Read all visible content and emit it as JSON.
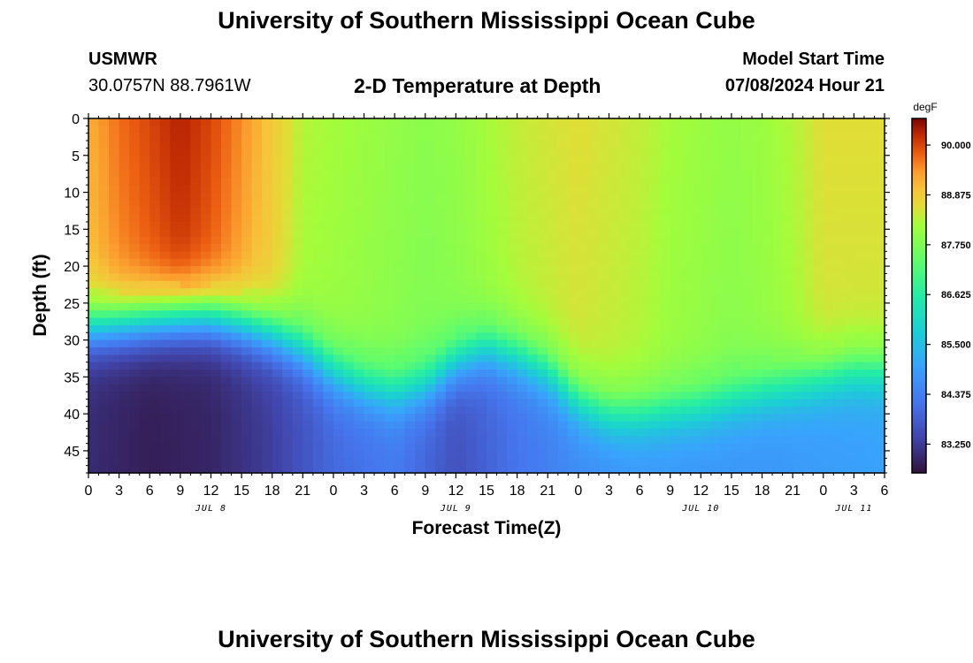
{
  "page": {
    "title_top": "University of Southern Mississippi Ocean Cube",
    "title_bottom": "University of Southern Mississippi Ocean Cube",
    "station": "USMWR",
    "coordinates": "30.0757N  88.7961W",
    "subtitle": "2-D Temperature at Depth",
    "start_label": "Model Start Time",
    "start_value": "07/08/2024 Hour 21"
  },
  "chart_data": {
    "type": "heatmap",
    "title": "2-D Temperature at Depth",
    "xlabel": "Forecast Time(Z)",
    "ylabel": "Depth (ft)",
    "x_tick_labels": [
      "0",
      "3",
      "6",
      "9",
      "12",
      "15",
      "18",
      "21",
      "0",
      "3",
      "6",
      "9",
      "12",
      "15",
      "18",
      "21",
      "0",
      "3",
      "6",
      "9",
      "12",
      "15",
      "18",
      "21",
      "0",
      "3",
      "6"
    ],
    "x_range_hours": [
      0,
      78
    ],
    "date_labels": [
      {
        "label": "JUL 8",
        "hour": 12
      },
      {
        "label": "JUL 9",
        "hour": 36
      },
      {
        "label": "JUL 10",
        "hour": 60
      },
      {
        "label": "JUL 11",
        "hour": 75
      }
    ],
    "y_ticks": [
      0,
      5,
      10,
      15,
      20,
      25,
      30,
      35,
      40,
      45
    ],
    "y_range_ft": [
      0,
      48
    ],
    "colorbar": {
      "unit": "degF",
      "min": 82.6,
      "max": 90.6,
      "tick_labels": [
        "83.250",
        "84.375",
        "85.500",
        "86.625",
        "87.750",
        "88.875",
        "90.000"
      ],
      "tick_values": [
        83.25,
        84.375,
        85.5,
        86.625,
        87.75,
        88.875,
        90.0
      ]
    },
    "surface_temp_by_hour": [
      [
        0,
        89.2
      ],
      [
        3,
        89.7
      ],
      [
        6,
        90.0
      ],
      [
        9,
        90.3
      ],
      [
        12,
        90.0
      ],
      [
        15,
        89.5
      ],
      [
        18,
        88.9
      ],
      [
        21,
        88.3
      ],
      [
        24,
        88.2
      ],
      [
        27,
        88.1
      ],
      [
        30,
        88.0
      ],
      [
        33,
        87.9
      ],
      [
        36,
        88.0
      ],
      [
        39,
        88.2
      ],
      [
        42,
        88.4
      ],
      [
        45,
        88.5
      ],
      [
        48,
        88.6
      ],
      [
        51,
        88.5
      ],
      [
        54,
        88.4
      ],
      [
        57,
        88.2
      ],
      [
        60,
        88.1
      ],
      [
        63,
        88.0
      ],
      [
        66,
        88.1
      ],
      [
        69,
        88.3
      ],
      [
        72,
        88.6
      ],
      [
        75,
        88.6
      ],
      [
        78,
        88.6
      ]
    ],
    "thermocline_depth_ft_by_hour": [
      [
        0,
        28
      ],
      [
        3,
        27.5
      ],
      [
        6,
        27
      ],
      [
        9,
        26.5
      ],
      [
        12,
        26.5
      ],
      [
        15,
        27.5
      ],
      [
        18,
        29
      ],
      [
        21,
        31
      ],
      [
        24,
        34
      ],
      [
        27,
        36
      ],
      [
        30,
        37
      ],
      [
        33,
        36
      ],
      [
        36,
        33
      ],
      [
        39,
        31
      ],
      [
        42,
        32
      ],
      [
        45,
        34
      ],
      [
        48,
        38
      ],
      [
        51,
        40
      ],
      [
        54,
        40
      ],
      [
        57,
        39.5
      ],
      [
        60,
        39
      ],
      [
        63,
        38
      ],
      [
        66,
        37
      ],
      [
        69,
        36
      ],
      [
        72,
        35
      ],
      [
        75,
        34
      ],
      [
        78,
        34
      ]
    ],
    "bottom_temp_by_hour": [
      [
        0,
        83.0
      ],
      [
        6,
        82.8
      ],
      [
        12,
        82.9
      ],
      [
        18,
        83.3
      ],
      [
        24,
        84.0
      ],
      [
        30,
        84.3
      ],
      [
        36,
        83.6
      ],
      [
        42,
        84.2
      ],
      [
        48,
        84.6
      ],
      [
        54,
        84.8
      ],
      [
        60,
        84.8
      ],
      [
        66,
        84.8
      ],
      [
        72,
        84.9
      ],
      [
        78,
        85.0
      ]
    ]
  }
}
